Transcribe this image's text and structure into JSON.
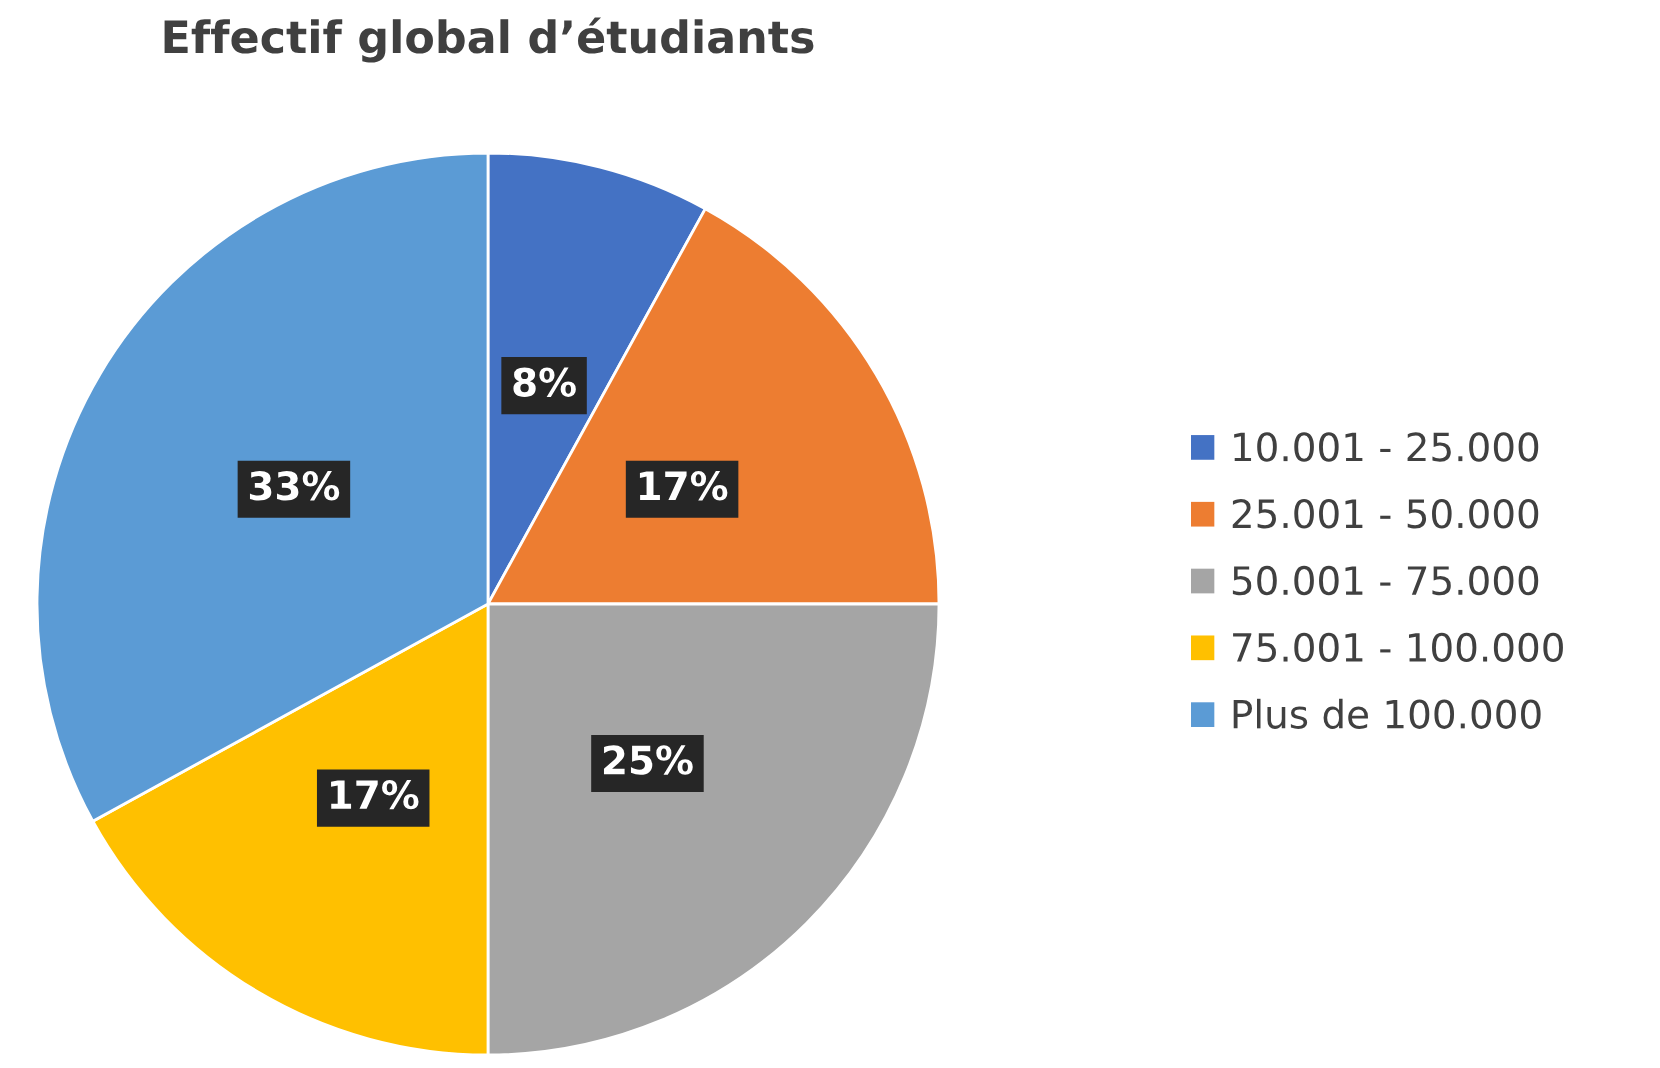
{
  "chart_data": {
    "type": "pie",
    "title": "Effectif global d’étudiants",
    "categories": [
      "10.001 - 25.000",
      "25.001 - 50.000",
      "50.001 - 75.000",
      "75.001 - 100.000",
      "Plus de 100.000"
    ],
    "values": [
      8,
      17,
      25,
      17,
      33
    ],
    "value_labels": [
      "8%",
      "17%",
      "25%",
      "17%",
      "33%"
    ],
    "colors": [
      "#4472c4",
      "#ed7d31",
      "#a5a5a5",
      "#ffc000",
      "#5b9bd5"
    ],
    "legend": "right"
  }
}
